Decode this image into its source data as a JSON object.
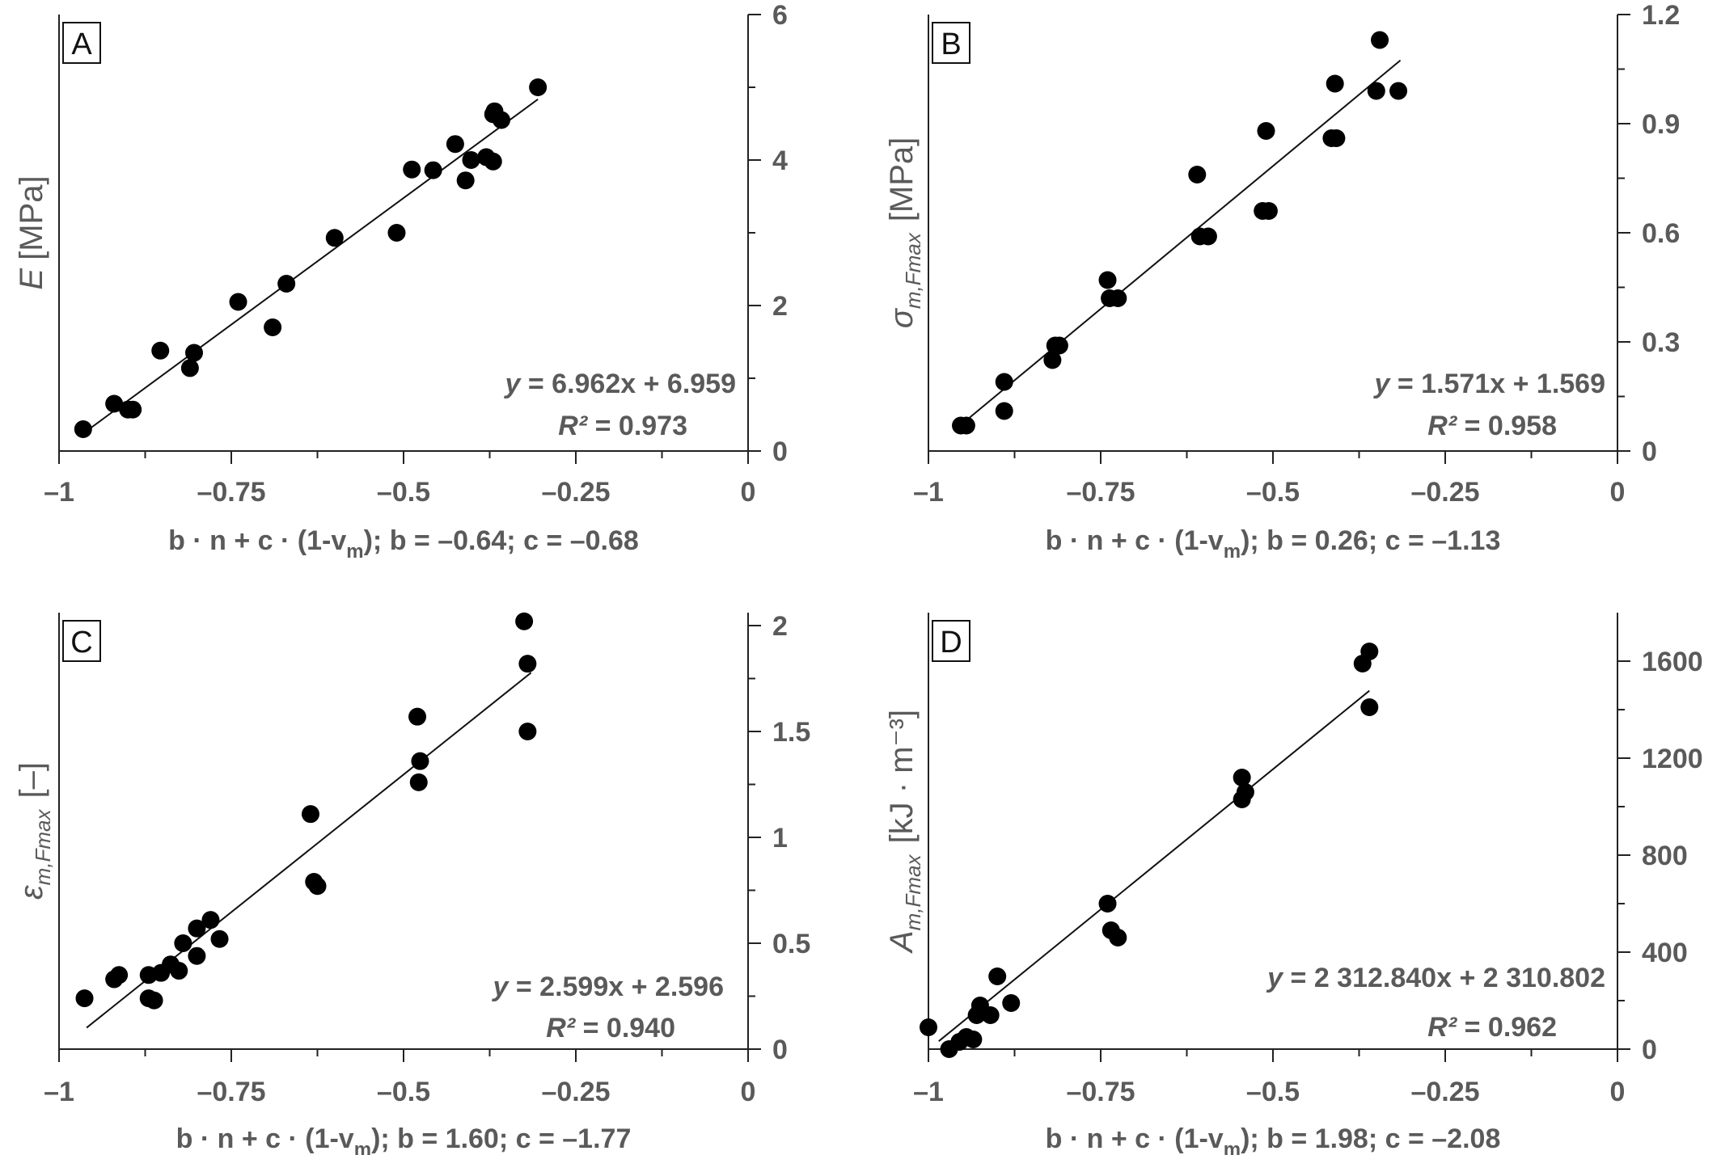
{
  "panels": [
    {
      "letter": "A",
      "ylabel_main": "E",
      "ylabel_sub": "",
      "ylabel_unit": "[MPa]",
      "xlabel_main": "b · n + c · (1-v",
      "xlabel_sub": "m",
      "xlabel_tail": "); b = –0.64; c = –0.68",
      "equation_y": "y",
      "equation_rest": " = 6.962x + 6.959",
      "r2_label": "R²",
      "r2_value": " = 0.973",
      "x_ticks": [
        "–1",
        "–0.75",
        "–0.5",
        "–0.25",
        "0"
      ],
      "y_ticks": [
        "0",
        "2",
        "4",
        "6"
      ]
    },
    {
      "letter": "B",
      "ylabel_main": "σ",
      "ylabel_sub": "m,Fmax",
      "ylabel_unit": "[MPa]",
      "xlabel_main": "b · n + c · (1-v",
      "xlabel_sub": "m",
      "xlabel_tail": "); b = 0.26; c = –1.13",
      "equation_y": "y",
      "equation_rest": " = 1.571x + 1.569",
      "r2_label": "R²",
      "r2_value": " = 0.958",
      "x_ticks": [
        "–1",
        "–0.75",
        "–0.5",
        "–0.25",
        "0"
      ],
      "y_ticks": [
        "0",
        "0.3",
        "0.6",
        "0.9",
        "1.2"
      ]
    },
    {
      "letter": "C",
      "ylabel_main": "ε",
      "ylabel_sub": "m,Fmax",
      "ylabel_unit": "[–]",
      "xlabel_main": "b · n + c · (1-v",
      "xlabel_sub": "m",
      "xlabel_tail": "); b = 1.60; c = –1.77",
      "equation_y": "y",
      "equation_rest": " = 2.599x + 2.596",
      "r2_label": "R²",
      "r2_value": " = 0.940",
      "x_ticks": [
        "–1",
        "–0.75",
        "–0.5",
        "–0.25",
        "0"
      ],
      "y_ticks": [
        "0",
        "0.5",
        "1",
        "1.5",
        "2"
      ]
    },
    {
      "letter": "D",
      "ylabel_main": "A",
      "ylabel_sub": "m,Fmax",
      "ylabel_unit": "[kJ · m⁻³]",
      "xlabel_main": "b · n + c · (1-v",
      "xlabel_sub": "m",
      "xlabel_tail": "); b = 1.98; c = –2.08",
      "equation_y": "y",
      "equation_rest": " = 2 312.840x + 2 310.802",
      "r2_label": "R²",
      "r2_value": " = 0.962",
      "x_ticks": [
        "–1",
        "–0.75",
        "–0.5",
        "–0.25",
        "0"
      ],
      "y_ticks": [
        "0",
        "400",
        "800",
        "1200",
        "1600"
      ]
    }
  ],
  "colors": {
    "point": "#000000",
    "axis": "#222222",
    "text": "#5a5a5a"
  },
  "chart_data": [
    {
      "type": "scatter",
      "panel": "A",
      "xlim": [
        -1,
        0
      ],
      "ylim": [
        0,
        6
      ],
      "x_ticks": [
        -1,
        -0.75,
        -0.5,
        -0.25,
        0
      ],
      "y_ticks": [
        0,
        2,
        4,
        6
      ],
      "y_axis_side": "right",
      "fit": {
        "slope": 6.962,
        "intercept": 6.959,
        "x_range": [
          -0.965,
          -0.305
        ]
      },
      "points": [
        [
          -0.965,
          0.3
        ],
        [
          -0.92,
          0.65
        ],
        [
          -0.9,
          0.57
        ],
        [
          -0.893,
          0.57
        ],
        [
          -0.853,
          1.38
        ],
        [
          -0.81,
          1.14
        ],
        [
          -0.804,
          1.35
        ],
        [
          -0.74,
          2.05
        ],
        [
          -0.69,
          1.7
        ],
        [
          -0.67,
          2.3
        ],
        [
          -0.6,
          2.93
        ],
        [
          -0.51,
          3.0
        ],
        [
          -0.488,
          3.87
        ],
        [
          -0.457,
          3.86
        ],
        [
          -0.425,
          4.22
        ],
        [
          -0.41,
          3.72
        ],
        [
          -0.402,
          4.0
        ],
        [
          -0.38,
          4.04
        ],
        [
          -0.37,
          3.98
        ],
        [
          -0.37,
          4.63
        ],
        [
          -0.368,
          4.67
        ],
        [
          -0.358,
          4.55
        ],
        [
          -0.305,
          5.0
        ]
      ]
    },
    {
      "type": "scatter",
      "panel": "B",
      "xlim": [
        -1,
        0
      ],
      "ylim": [
        0,
        1.2
      ],
      "x_ticks": [
        -1,
        -0.75,
        -0.5,
        -0.25,
        0
      ],
      "y_ticks": [
        0,
        0.3,
        0.6,
        0.9,
        1.2
      ],
      "y_axis_side": "right",
      "fit": {
        "slope": 1.571,
        "intercept": 1.569,
        "x_range": [
          -0.955,
          -0.315
        ]
      },
      "points": [
        [
          -0.953,
          0.07
        ],
        [
          -0.945,
          0.07
        ],
        [
          -0.89,
          0.19
        ],
        [
          -0.89,
          0.11
        ],
        [
          -0.82,
          0.25
        ],
        [
          -0.816,
          0.29
        ],
        [
          -0.81,
          0.29
        ],
        [
          -0.74,
          0.47
        ],
        [
          -0.737,
          0.42
        ],
        [
          -0.725,
          0.42
        ],
        [
          -0.61,
          0.76
        ],
        [
          -0.606,
          0.59
        ],
        [
          -0.594,
          0.59
        ],
        [
          -0.515,
          0.66
        ],
        [
          -0.506,
          0.66
        ],
        [
          -0.51,
          0.88
        ],
        [
          -0.415,
          0.86
        ],
        [
          -0.408,
          0.86
        ],
        [
          -0.41,
          1.01
        ],
        [
          -0.35,
          0.99
        ],
        [
          -0.345,
          1.13
        ],
        [
          -0.318,
          0.99
        ]
      ]
    },
    {
      "type": "scatter",
      "panel": "C",
      "xlim": [
        -1,
        0
      ],
      "ylim": [
        0,
        2
      ],
      "x_ticks": [
        -1,
        -0.75,
        -0.5,
        -0.25,
        0
      ],
      "y_ticks": [
        0,
        0.5,
        1,
        1.5,
        2
      ],
      "y_axis_side": "right",
      "fit": {
        "slope": 2.599,
        "intercept": 2.596,
        "x_range": [
          -0.96,
          -0.315
        ]
      },
      "points": [
        [
          -0.963,
          0.24
        ],
        [
          -0.92,
          0.33
        ],
        [
          -0.913,
          0.35
        ],
        [
          -0.87,
          0.35
        ],
        [
          -0.87,
          0.24
        ],
        [
          -0.862,
          0.23
        ],
        [
          -0.852,
          0.36
        ],
        [
          -0.838,
          0.4
        ],
        [
          -0.826,
          0.37
        ],
        [
          -0.82,
          0.5
        ],
        [
          -0.8,
          0.44
        ],
        [
          -0.8,
          0.57
        ],
        [
          -0.78,
          0.61
        ],
        [
          -0.767,
          0.52
        ],
        [
          -0.635,
          1.11
        ],
        [
          -0.63,
          0.79
        ],
        [
          -0.625,
          0.77
        ],
        [
          -0.48,
          1.57
        ],
        [
          -0.476,
          1.36
        ],
        [
          -0.478,
          1.26
        ],
        [
          -0.325,
          2.02
        ],
        [
          -0.32,
          1.82
        ],
        [
          -0.32,
          1.5
        ]
      ]
    },
    {
      "type": "scatter",
      "panel": "D",
      "xlim": [
        -1,
        0
      ],
      "ylim": [
        0,
        1800
      ],
      "x_ticks": [
        -1,
        -0.75,
        -0.5,
        -0.25,
        0
      ],
      "y_ticks": [
        0,
        400,
        800,
        1200,
        1600
      ],
      "y_axis_side": "right",
      "fit": {
        "slope": 2312.84,
        "intercept": 2310.802,
        "x_range": [
          -0.985,
          -0.36
        ]
      },
      "points": [
        [
          -1.0,
          90
        ],
        [
          -0.97,
          0
        ],
        [
          -0.955,
          30
        ],
        [
          -0.945,
          50
        ],
        [
          -0.935,
          40
        ],
        [
          -0.93,
          140
        ],
        [
          -0.925,
          180
        ],
        [
          -0.91,
          140
        ],
        [
          -0.9,
          300
        ],
        [
          -0.88,
          190
        ],
        [
          -0.74,
          600
        ],
        [
          -0.735,
          490
        ],
        [
          -0.725,
          460
        ],
        [
          -0.545,
          1120
        ],
        [
          -0.545,
          1030
        ],
        [
          -0.54,
          1060
        ],
        [
          -0.37,
          1590
        ],
        [
          -0.36,
          1640
        ],
        [
          -0.36,
          1410
        ]
      ]
    }
  ]
}
